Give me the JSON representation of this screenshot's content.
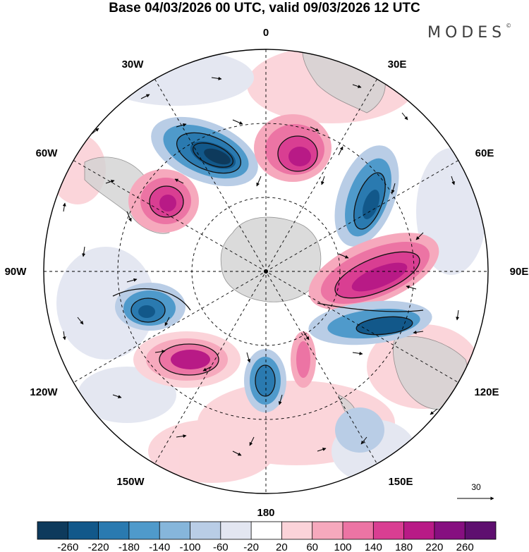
{
  "title": "Base 04/03/2026 00 UTC, valid 09/03/2026 12 UTC",
  "brand": {
    "name": "MODES",
    "mark": "©"
  },
  "longitude_labels": {
    "n0": "0",
    "n30e": "30E",
    "n60e": "60E",
    "n90e": "90E",
    "n120e": "120E",
    "n150e": "150E",
    "n180": "180",
    "n150w": "150W",
    "n120w": "120W",
    "n90w": "90W",
    "n60w": "60W",
    "n30w": "30W"
  },
  "vector_legend": {
    "value": "30"
  },
  "colorbar": {
    "ticks": [
      "-260",
      "-220",
      "-180",
      "-140",
      "-100",
      "-60",
      "-20",
      "20",
      "60",
      "100",
      "140",
      "180",
      "220",
      "260"
    ],
    "colors": [
      "#0e3a5c",
      "#12588a",
      "#2a7ab0",
      "#4f9acb",
      "#86b6db",
      "#b9cde6",
      "#e3e6f1",
      "#ffffff",
      "#fbd3d9",
      "#f6a9bd",
      "#ec74a4",
      "#d93e92",
      "#b81a86",
      "#860f80",
      "#5e0f6f"
    ]
  },
  "colors": {
    "land": "#d3d3d3",
    "coast": "#7a7a7a",
    "contour": "#111111"
  }
}
